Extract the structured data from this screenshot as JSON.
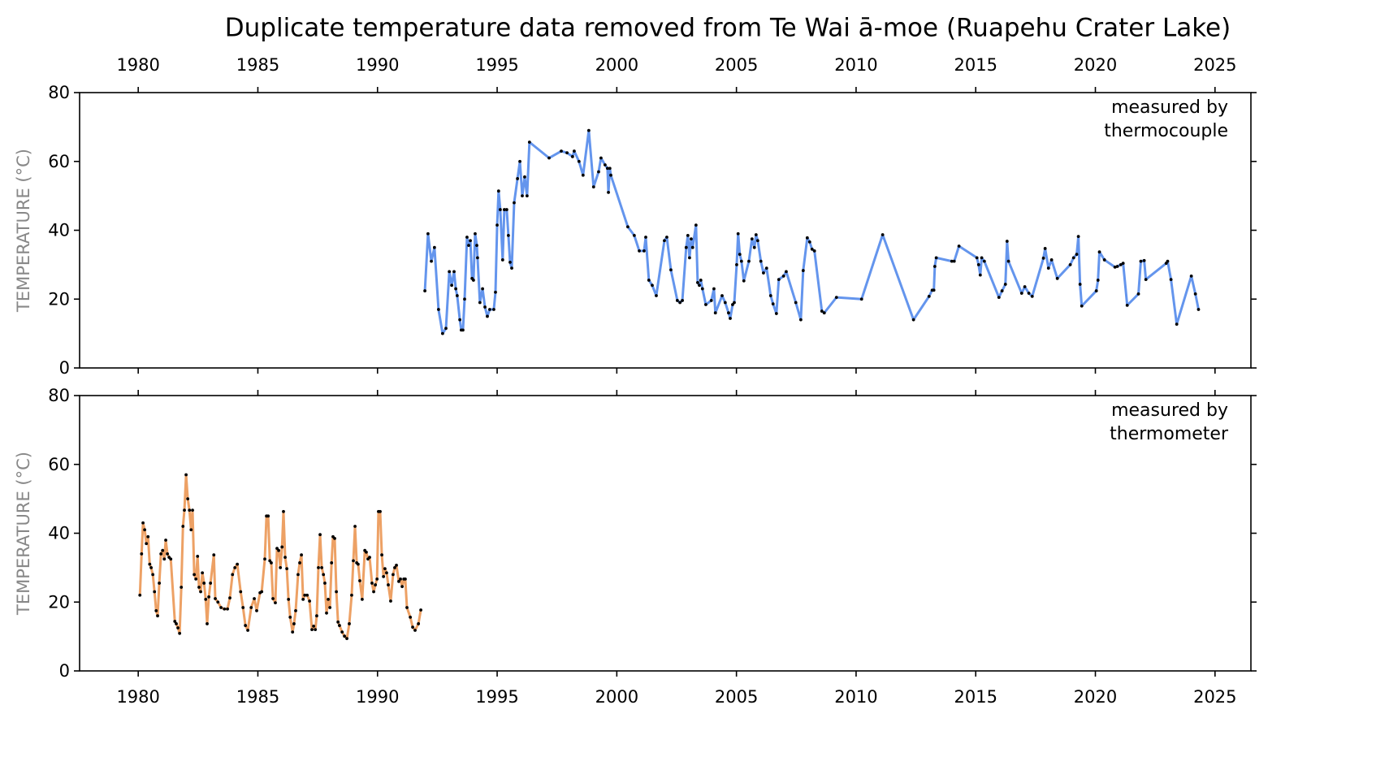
{
  "title": "Duplicate temperature data removed from Te Wai ā-moe (Ruapehu Crater Lake)",
  "chart_data": [
    {
      "type": "line",
      "xtick_labels": "top",
      "ylabel": "TEMPERATURE (°C)",
      "annotation": "measured by\nthermocouple",
      "xlim": [
        1977.55,
        2026.5
      ],
      "xticks": [
        1980,
        1985,
        1990,
        1995,
        2000,
        2005,
        2010,
        2015,
        2020,
        2025
      ],
      "ylim": [
        0,
        80
      ],
      "yticks": [
        0,
        20,
        40,
        60,
        80
      ],
      "x": [
        1991.98,
        1992.11,
        1992.25,
        1992.38,
        1992.55,
        1992.72,
        1992.86,
        1993.0,
        1993.1,
        1993.2,
        1993.27,
        1993.33,
        1993.44,
        1993.5,
        1993.57,
        1993.64,
        1993.74,
        1993.81,
        1993.88,
        1993.95,
        1994.01,
        1994.08,
        1994.15,
        1994.18,
        1994.28,
        1994.39,
        1994.49,
        1994.59,
        1994.69,
        1994.86,
        1994.93,
        1995.0,
        1995.06,
        1995.13,
        1995.23,
        1995.3,
        1995.4,
        1995.47,
        1995.54,
        1995.61,
        1995.71,
        1995.85,
        1995.95,
        1996.05,
        1996.15,
        1996.25,
        1996.35,
        1997.17,
        1997.68,
        1997.92,
        1998.15,
        1998.22,
        1998.42,
        1998.59,
        1998.83,
        1999.03,
        1999.24,
        1999.34,
        1999.51,
        1999.61,
        1999.65,
        1999.71,
        1999.75,
        2000.46,
        2000.73,
        2000.94,
        2001.14,
        2001.21,
        2001.34,
        2001.48,
        2001.65,
        2001.99,
        2002.09,
        2002.26,
        2002.53,
        2002.64,
        2002.74,
        2002.9,
        2002.97,
        2003.04,
        2003.11,
        2003.17,
        2003.31,
        2003.38,
        2003.45,
        2003.51,
        2003.58,
        2003.72,
        2003.95,
        2004.06,
        2004.12,
        2004.4,
        2004.53,
        2004.67,
        2004.74,
        2004.84,
        2004.91,
        2005.01,
        2005.07,
        2005.14,
        2005.21,
        2005.31,
        2005.52,
        2005.65,
        2005.75,
        2005.82,
        2005.89,
        2006.02,
        2006.13,
        2006.26,
        2006.43,
        2006.53,
        2006.67,
        2006.77,
        2006.97,
        2007.08,
        2007.48,
        2007.69,
        2007.79,
        2007.96,
        2008.06,
        2008.16,
        2008.26,
        2008.57,
        2008.67,
        2009.18,
        2010.23,
        2011.11,
        2012.4,
        2013.05,
        2013.18,
        2013.25,
        2013.29,
        2013.35,
        2014.0,
        2014.1,
        2014.3,
        2015.05,
        2015.12,
        2015.19,
        2015.25,
        2015.36,
        2015.97,
        2016.1,
        2016.24,
        2016.31,
        2016.37,
        2016.92,
        2017.05,
        2017.22,
        2017.36,
        2017.83,
        2017.9,
        2018.04,
        2018.17,
        2018.41,
        2018.95,
        2019.09,
        2019.22,
        2019.29,
        2019.36,
        2019.43,
        2020.04,
        2020.11,
        2020.17,
        2020.38,
        2020.82,
        2020.92,
        2021.06,
        2021.16,
        2021.33,
        2021.8,
        2021.9,
        2022.04,
        2022.11,
        2022.96,
        2023.02,
        2023.16,
        2023.4,
        2024.01,
        2024.18,
        2024.31
      ],
      "series": [
        {
          "color": "#6495ed",
          "marker_color": "#000000",
          "values": [
            22.4,
            39,
            31,
            35,
            17,
            10,
            11.5,
            28,
            24,
            28,
            23,
            21,
            14,
            11,
            11,
            20,
            38,
            35.6,
            37,
            26,
            25.5,
            39,
            35.6,
            32,
            19,
            23,
            17.7,
            15,
            17,
            17,
            22,
            41.5,
            51.4,
            46,
            31.4,
            46,
            46,
            38.5,
            30.7,
            29,
            48,
            55,
            60,
            50,
            55.5,
            50,
            65.6,
            61,
            63,
            62.5,
            61.4,
            63,
            60,
            56,
            69,
            52.6,
            57,
            61,
            59,
            58,
            51,
            58,
            56,
            41,
            38.5,
            34,
            34,
            38,
            25.5,
            24,
            21,
            37,
            38,
            28.5,
            19.6,
            19,
            19.6,
            35,
            38.5,
            32,
            37.5,
            35,
            41.5,
            24.8,
            24,
            25.5,
            23,
            18.4,
            19.6,
            23,
            16,
            21,
            19,
            16,
            14.4,
            18.4,
            19,
            30,
            39,
            33,
            31,
            25.3,
            31,
            37.5,
            35,
            38.7,
            37,
            31,
            27.6,
            29,
            21,
            18.6,
            15.8,
            25.7,
            26.7,
            28,
            19,
            14,
            28.3,
            37.8,
            36.6,
            34.5,
            34,
            16.5,
            16,
            20.5,
            20,
            38.7,
            14,
            20.8,
            22.6,
            22.6,
            29.5,
            32,
            31,
            31,
            35.4,
            32,
            30,
            27,
            32,
            31,
            20.5,
            22.4,
            24.3,
            36.8,
            31,
            21.7,
            23.6,
            21.7,
            20.8,
            31.9,
            34.7,
            29,
            31.4,
            26,
            30,
            32,
            33,
            38.2,
            24.3,
            18,
            22.4,
            25.5,
            33.7,
            31.4,
            29.3,
            29.5,
            30,
            30.4,
            18.2,
            21.5,
            31,
            31.2,
            25.7,
            30.4,
            31,
            25.7,
            12.7,
            26.7,
            21.5,
            17
          ]
        }
      ]
    },
    {
      "type": "line",
      "xtick_labels": "bottom",
      "ylabel": "TEMPERATURE (°C)",
      "annotation": "measured by\nthermometer",
      "xlim": [
        1977.55,
        2026.5
      ],
      "xticks": [
        1980,
        1985,
        1990,
        1995,
        2000,
        2005,
        2010,
        2015,
        2020,
        2025
      ],
      "ylim": [
        0,
        80
      ],
      "yticks": [
        0,
        20,
        40,
        60,
        80
      ],
      "x": [
        1980.07,
        1980.14,
        1980.2,
        1980.27,
        1980.34,
        1980.41,
        1980.48,
        1980.54,
        1980.61,
        1980.68,
        1980.75,
        1980.81,
        1980.88,
        1980.95,
        1981.02,
        1981.09,
        1981.15,
        1981.22,
        1981.29,
        1981.36,
        1981.53,
        1981.59,
        1981.66,
        1981.73,
        1981.8,
        1981.87,
        1981.93,
        1982.0,
        1982.07,
        1982.14,
        1982.21,
        1982.27,
        1982.34,
        1982.41,
        1982.48,
        1982.54,
        1982.61,
        1982.68,
        1982.75,
        1982.82,
        1982.88,
        1982.95,
        1983.02,
        1983.16,
        1983.22,
        1983.33,
        1983.46,
        1983.6,
        1983.73,
        1983.83,
        1983.94,
        1984.04,
        1984.14,
        1984.28,
        1984.38,
        1984.48,
        1984.58,
        1984.72,
        1984.85,
        1984.95,
        1985.09,
        1985.16,
        1985.29,
        1985.36,
        1985.43,
        1985.5,
        1985.56,
        1985.63,
        1985.73,
        1985.8,
        1985.87,
        1985.94,
        1986.01,
        1986.07,
        1986.14,
        1986.21,
        1986.28,
        1986.35,
        1986.45,
        1986.51,
        1986.58,
        1986.68,
        1986.75,
        1986.82,
        1986.89,
        1986.96,
        1987.06,
        1987.16,
        1987.26,
        1987.33,
        1987.4,
        1987.46,
        1987.53,
        1987.6,
        1987.67,
        1987.74,
        1987.8,
        1987.87,
        1987.94,
        1988.01,
        1988.08,
        1988.14,
        1988.21,
        1988.28,
        1988.35,
        1988.41,
        1988.52,
        1988.62,
        1988.72,
        1988.82,
        1988.92,
        1988.99,
        1989.06,
        1989.13,
        1989.19,
        1989.26,
        1989.36,
        1989.47,
        1989.53,
        1989.6,
        1989.67,
        1989.77,
        1989.84,
        1989.91,
        1989.98,
        1990.04,
        1990.11,
        1990.18,
        1990.25,
        1990.31,
        1990.38,
        1990.45,
        1990.55,
        1990.65,
        1990.72,
        1990.79,
        1990.89,
        1990.96,
        1991.03,
        1991.1,
        1991.16,
        1991.23,
        1991.37,
        1991.47,
        1991.57,
        1991.71,
        1991.81
      ],
      "series": [
        {
          "color": "#eda165",
          "marker_color": "#000000",
          "values": [
            22,
            34,
            43,
            41,
            37,
            39,
            31,
            30,
            28,
            23,
            17.5,
            16,
            25.5,
            34,
            35,
            32.5,
            38,
            34,
            33,
            32.5,
            14.4,
            13.7,
            12.5,
            10.9,
            24.3,
            42,
            46.7,
            57,
            50,
            46.7,
            41,
            46.7,
            28,
            26.7,
            33.3,
            24.3,
            23,
            28.5,
            25.5,
            20.8,
            13.7,
            21.5,
            25.5,
            33.7,
            21,
            20,
            18.4,
            18,
            18,
            21.2,
            28,
            30,
            31,
            23,
            18.4,
            13.2,
            11.8,
            18.4,
            21,
            17.5,
            22.7,
            23,
            32.5,
            45,
            45,
            32,
            31.4,
            21,
            19.8,
            35.6,
            35,
            30,
            36,
            46.3,
            33,
            29.7,
            20.8,
            15.6,
            11.3,
            13.7,
            17.5,
            28,
            31.4,
            33.7,
            20.8,
            22,
            22,
            20.3,
            12,
            13,
            12,
            16,
            30,
            39.6,
            30,
            28,
            25.5,
            16.8,
            20.8,
            18.4,
            31.4,
            39,
            38.5,
            23,
            14.2,
            13.2,
            11.3,
            10.1,
            9.4,
            13.7,
            22,
            32,
            42,
            31.4,
            31,
            26.2,
            20.8,
            35,
            34.5,
            32.5,
            33,
            25.5,
            23,
            25,
            26.7,
            46.3,
            46.3,
            33.7,
            27.4,
            29.7,
            28.5,
            25,
            20.3,
            28,
            30,
            30.7,
            26,
            26.7,
            24.5,
            26.7,
            26.7,
            18.4,
            15.6,
            12.7,
            11.8,
            13.7,
            17.7
          ]
        }
      ]
    }
  ]
}
